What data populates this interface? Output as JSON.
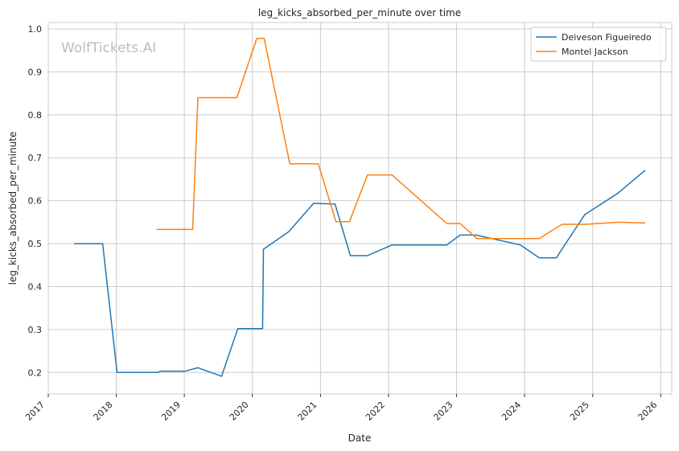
{
  "chart_data": {
    "type": "line",
    "title": "leg_kicks_absorbed_per_minute over time",
    "xlabel": "Date",
    "ylabel": "leg_kicks_absorbed_per_minute",
    "watermark": "WolfTickets.AI",
    "x_ticks": [
      "2017",
      "2018",
      "2019",
      "2020",
      "2021",
      "2022",
      "2023",
      "2024",
      "2025",
      "2026"
    ],
    "y_ticks": [
      "0.2",
      "0.3",
      "0.4",
      "0.5",
      "0.6",
      "0.7",
      "0.8",
      "0.9",
      "1.0"
    ],
    "xlim": [
      "2017-01-01",
      "2026-03-01"
    ],
    "ylim": [
      0.15,
      1.015
    ],
    "grid": true,
    "legend_position": "top-right",
    "series": [
      {
        "name": "Deiveson Figueiredo",
        "color": "#1f77b4",
        "points": [
          [
            "2017-05-20",
            0.5
          ],
          [
            "2017-10-20",
            0.5
          ],
          [
            "2018-01-05",
            0.2
          ],
          [
            "2018-08-10",
            0.2
          ],
          [
            "2018-08-25",
            0.203
          ],
          [
            "2019-01-05",
            0.203
          ],
          [
            "2019-03-15",
            0.211
          ],
          [
            "2019-07-20",
            0.191
          ],
          [
            "2019-10-15",
            0.302
          ],
          [
            "2020-02-25",
            0.302
          ],
          [
            "2020-03-01",
            0.487
          ],
          [
            "2020-07-15",
            0.528
          ],
          [
            "2020-11-25",
            0.594
          ],
          [
            "2021-03-20",
            0.592
          ],
          [
            "2021-06-10",
            0.472
          ],
          [
            "2021-09-10",
            0.472
          ],
          [
            "2022-01-20",
            0.497
          ],
          [
            "2022-11-10",
            0.497
          ],
          [
            "2023-01-20",
            0.52
          ],
          [
            "2023-04-15",
            0.52
          ],
          [
            "2023-12-10",
            0.497
          ],
          [
            "2024-03-20",
            0.467
          ],
          [
            "2024-06-20",
            0.467
          ],
          [
            "2024-08-05",
            0.498
          ],
          [
            "2024-11-20",
            0.568
          ],
          [
            "2025-05-15",
            0.617
          ],
          [
            "2025-10-10",
            0.671
          ]
        ]
      },
      {
        "name": "Montel Jackson",
        "color": "#ff7f0e",
        "points": [
          [
            "2018-08-05",
            0.533
          ],
          [
            "2019-02-15",
            0.533
          ],
          [
            "2019-03-15",
            0.84
          ],
          [
            "2019-10-10",
            0.84
          ],
          [
            "2020-01-25",
            0.978
          ],
          [
            "2020-03-05",
            0.978
          ],
          [
            "2020-07-20",
            0.686
          ],
          [
            "2020-12-20",
            0.686
          ],
          [
            "2021-03-25",
            0.551
          ],
          [
            "2021-06-05",
            0.551
          ],
          [
            "2021-09-10",
            0.66
          ],
          [
            "2022-01-20",
            0.66
          ],
          [
            "2022-11-10",
            0.547
          ],
          [
            "2023-01-20",
            0.547
          ],
          [
            "2023-04-20",
            0.512
          ],
          [
            "2024-03-20",
            0.512
          ],
          [
            "2024-07-20",
            0.545
          ],
          [
            "2024-11-25",
            0.545
          ],
          [
            "2025-05-20",
            0.55
          ],
          [
            "2025-10-10",
            0.548
          ]
        ]
      }
    ]
  }
}
